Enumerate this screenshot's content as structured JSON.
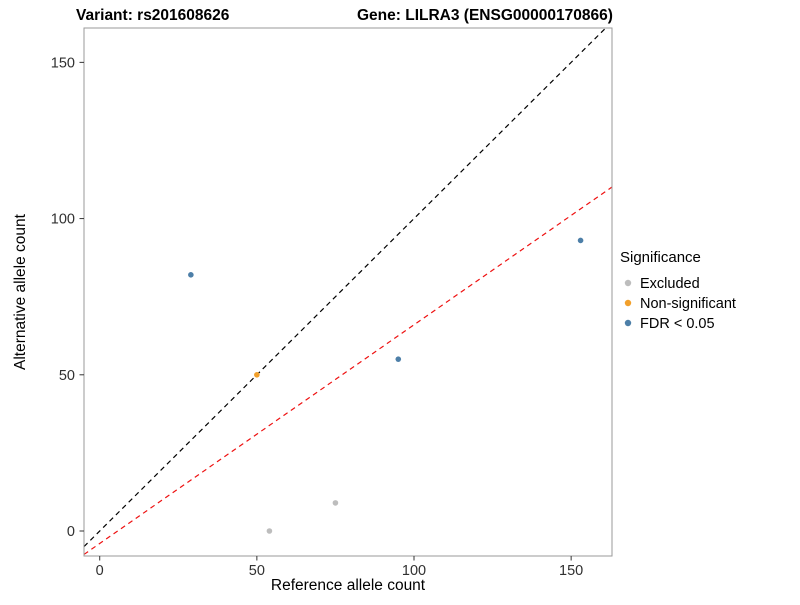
{
  "chart_data": {
    "type": "scatter",
    "title_left": "Variant: rs201608626",
    "title_right": "Gene: LILRA3 (ENSG00000170866)",
    "xlabel": "Reference allele count",
    "ylabel": "Alternative allele count",
    "xlim": [
      -5,
      163
    ],
    "ylim": [
      -8,
      161
    ],
    "xticks": [
      0,
      50,
      100,
      150
    ],
    "yticks": [
      0,
      50,
      100,
      150
    ],
    "grid": false,
    "legend": {
      "title": "Significance",
      "position": "right",
      "entries": [
        {
          "label": "Excluded",
          "color": "#bdbdbd"
        },
        {
          "label": "Non-significant",
          "color": "#f2a02b"
        },
        {
          "label": "FDR < 0.05",
          "color": "#4d7fa8"
        }
      ]
    },
    "points": [
      {
        "x": 29,
        "y": 82,
        "group": "FDR < 0.05"
      },
      {
        "x": 50,
        "y": 50,
        "group": "Non-significant"
      },
      {
        "x": 54,
        "y": 0,
        "group": "Excluded"
      },
      {
        "x": 75,
        "y": 9,
        "group": "Excluded"
      },
      {
        "x": 95,
        "y": 55,
        "group": "FDR < 0.05"
      },
      {
        "x": 153,
        "y": 93,
        "group": "FDR < 0.05"
      }
    ],
    "lines": [
      {
        "name": "identity",
        "slope": 1.0,
        "intercept": 0,
        "color": "#000000",
        "style": "dashed"
      },
      {
        "name": "fit",
        "slope": 0.7,
        "intercept": -4,
        "color": "#ee1111",
        "style": "dashed"
      }
    ]
  }
}
